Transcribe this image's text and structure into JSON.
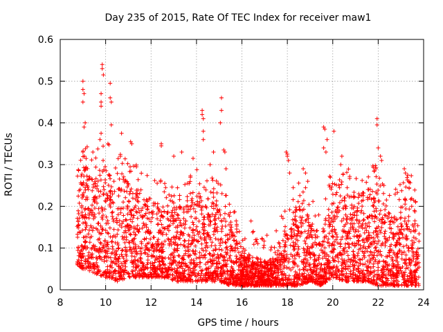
{
  "chart_data": {
    "type": "scatter",
    "title": "Day 235 of 2015, Rate Of TEC Index for receiver maw1",
    "xlabel": "GPS time / hours",
    "ylabel": "ROTI / TECUs",
    "xlim": [
      8,
      24
    ],
    "ylim": [
      0,
      0.6
    ],
    "xticks": [
      8,
      10,
      12,
      14,
      16,
      18,
      20,
      22,
      24
    ],
    "yticks": [
      0,
      0.1,
      0.2,
      0.3,
      0.4,
      0.5,
      0.6
    ],
    "xtick_labels": [
      "8",
      "10",
      "12",
      "14",
      "16",
      "18",
      "20",
      "22",
      "24"
    ],
    "ytick_labels": [
      "0",
      "0.1",
      "0.2",
      "0.3",
      "0.4",
      "0.5",
      "0.6"
    ],
    "grid": true,
    "marker": "+",
    "color": "#ff0000",
    "x_range_data": [
      8.75,
      23.8
    ],
    "dense_point_count": 6000,
    "series": [
      {
        "name": "maw1",
        "envelope_hours": [
          8.75,
          9.0,
          9.5,
          10.0,
          10.5,
          11.0,
          11.5,
          12.0,
          12.5,
          13.0,
          13.5,
          14.0,
          14.5,
          15.0,
          15.5,
          16.0,
          16.5,
          17.0,
          17.5,
          18.0,
          18.5,
          19.0,
          19.5,
          20.0,
          20.5,
          21.0,
          21.5,
          22.0,
          22.5,
          23.0,
          23.5,
          23.8
        ],
        "envelope_upper": [
          0.22,
          0.3,
          0.27,
          0.3,
          0.28,
          0.26,
          0.24,
          0.22,
          0.2,
          0.2,
          0.21,
          0.23,
          0.22,
          0.2,
          0.16,
          0.08,
          0.08,
          0.07,
          0.08,
          0.16,
          0.22,
          0.17,
          0.12,
          0.26,
          0.24,
          0.23,
          0.24,
          0.25,
          0.17,
          0.2,
          0.22,
          0.16
        ],
        "envelope_lower": [
          0.06,
          0.05,
          0.04,
          0.03,
          0.02,
          0.03,
          0.03,
          0.03,
          0.03,
          0.02,
          0.02,
          0.02,
          0.02,
          0.02,
          0.01,
          0.01,
          0.01,
          0.01,
          0.01,
          0.01,
          0.01,
          0.02,
          0.01,
          0.03,
          0.02,
          0.02,
          0.02,
          0.01,
          0.01,
          0.01,
          0.01,
          0.01
        ],
        "outlier_points": [
          [
            9.0,
            0.5
          ],
          [
            9.0,
            0.48
          ],
          [
            9.05,
            0.47
          ],
          [
            9.0,
            0.45
          ],
          [
            9.05,
            0.39
          ],
          [
            9.1,
            0.4
          ],
          [
            9.0,
            0.33
          ],
          [
            9.85,
            0.54
          ],
          [
            9.85,
            0.53
          ],
          [
            9.9,
            0.515
          ],
          [
            9.8,
            0.47
          ],
          [
            9.8,
            0.45
          ],
          [
            9.8,
            0.44
          ],
          [
            9.8,
            0.375
          ],
          [
            9.75,
            0.36
          ],
          [
            10.2,
            0.495
          ],
          [
            10.2,
            0.46
          ],
          [
            10.25,
            0.45
          ],
          [
            10.25,
            0.395
          ],
          [
            10.1,
            0.35
          ],
          [
            10.7,
            0.375
          ],
          [
            10.65,
            0.32
          ],
          [
            11.1,
            0.355
          ],
          [
            11.15,
            0.35
          ],
          [
            12.45,
            0.35
          ],
          [
            12.45,
            0.345
          ],
          [
            13.0,
            0.32
          ],
          [
            13.35,
            0.33
          ],
          [
            13.85,
            0.315
          ],
          [
            14.25,
            0.43
          ],
          [
            14.25,
            0.42
          ],
          [
            14.3,
            0.41
          ],
          [
            14.3,
            0.38
          ],
          [
            14.3,
            0.36
          ],
          [
            14.6,
            0.3
          ],
          [
            14.75,
            0.33
          ],
          [
            15.1,
            0.46
          ],
          [
            15.1,
            0.43
          ],
          [
            15.05,
            0.4
          ],
          [
            15.2,
            0.335
          ],
          [
            15.25,
            0.33
          ],
          [
            15.3,
            0.29
          ],
          [
            16.4,
            0.165
          ],
          [
            16.5,
            0.14
          ],
          [
            16.6,
            0.12
          ],
          [
            17.95,
            0.33
          ],
          [
            18.0,
            0.325
          ],
          [
            18.0,
            0.32
          ],
          [
            18.05,
            0.31
          ],
          [
            18.1,
            0.28
          ],
          [
            18.7,
            0.29
          ],
          [
            18.8,
            0.28
          ],
          [
            18.9,
            0.26
          ],
          [
            19.6,
            0.39
          ],
          [
            19.65,
            0.385
          ],
          [
            19.6,
            0.34
          ],
          [
            19.7,
            0.33
          ],
          [
            19.75,
            0.36
          ],
          [
            20.05,
            0.38
          ],
          [
            20.4,
            0.32
          ],
          [
            20.35,
            0.3
          ],
          [
            21.95,
            0.41
          ],
          [
            21.95,
            0.395
          ],
          [
            22.0,
            0.34
          ],
          [
            22.1,
            0.32
          ],
          [
            22.15,
            0.31
          ],
          [
            21.9,
            0.29
          ],
          [
            22.25,
            0.25
          ],
          [
            23.15,
            0.29
          ],
          [
            23.2,
            0.28
          ],
          [
            23.3,
            0.275
          ],
          [
            23.35,
            0.26
          ],
          [
            23.6,
            0.19
          ]
        ]
      }
    ]
  }
}
